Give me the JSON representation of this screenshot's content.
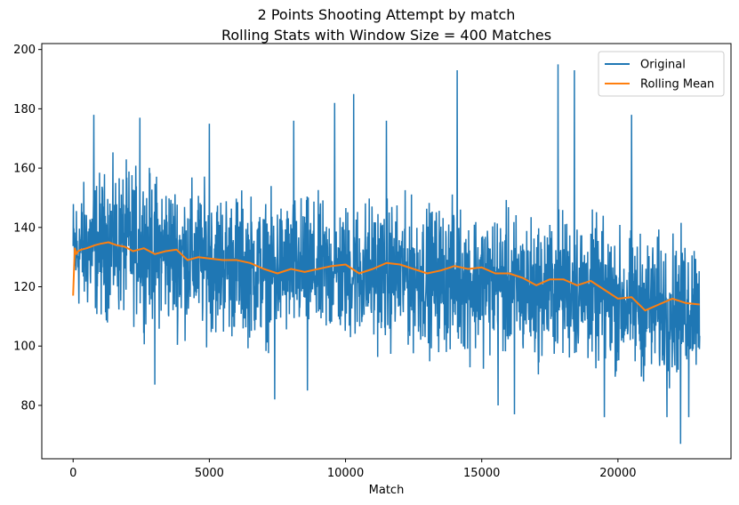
{
  "chart_data": {
    "type": "line",
    "title": "2 Points Shooting Attempt by match",
    "subtitle": "Rolling Stats with Window Size = 400 Matches",
    "xlabel": "Match",
    "ylabel": "",
    "xlim": [
      -1150,
      24150
    ],
    "ylim": [
      62,
      202
    ],
    "x_ticks": [
      0,
      5000,
      10000,
      15000,
      20000
    ],
    "y_ticks": [
      80,
      100,
      120,
      140,
      160,
      180,
      200
    ],
    "x_tick_labels": [
      "0",
      "5000",
      "10000",
      "15000",
      "20000"
    ],
    "y_tick_labels": [
      "80",
      "100",
      "120",
      "140",
      "160",
      "180",
      "200"
    ],
    "grid": false,
    "legend_position": "top-right",
    "series": [
      {
        "name": "Original",
        "color": "#1f77b4",
        "envelope_x": [
          0,
          1000,
          2000,
          3000,
          4000,
          5000,
          6000,
          7000,
          8000,
          9000,
          10000,
          11000,
          12000,
          13000,
          14000,
          15000,
          16000,
          17000,
          18000,
          19000,
          20000,
          21000,
          22000,
          23000
        ],
        "envelope_upper": [
          160,
          168,
          170,
          168,
          165,
          163,
          162,
          158,
          160,
          158,
          157,
          160,
          158,
          157,
          157,
          156,
          155,
          152,
          155,
          153,
          148,
          147,
          146,
          148
        ],
        "envelope_lower": [
          104,
          100,
          100,
          98,
          95,
          95,
          93,
          92,
          93,
          92,
          92,
          91,
          90,
          90,
          88,
          87,
          86,
          85,
          86,
          84,
          82,
          80,
          79,
          84
        ],
        "spikes": [
          {
            "x": 760,
            "y": 178
          },
          {
            "x": 2450,
            "y": 177
          },
          {
            "x": 3000,
            "y": 87
          },
          {
            "x": 5000,
            "y": 175
          },
          {
            "x": 7400,
            "y": 82
          },
          {
            "x": 8100,
            "y": 176
          },
          {
            "x": 8600,
            "y": 85
          },
          {
            "x": 9600,
            "y": 182
          },
          {
            "x": 10300,
            "y": 185
          },
          {
            "x": 11500,
            "y": 176
          },
          {
            "x": 14100,
            "y": 193
          },
          {
            "x": 15600,
            "y": 80
          },
          {
            "x": 16200,
            "y": 77
          },
          {
            "x": 17800,
            "y": 195
          },
          {
            "x": 18400,
            "y": 193
          },
          {
            "x": 19500,
            "y": 76
          },
          {
            "x": 20500,
            "y": 178
          },
          {
            "x": 21800,
            "y": 76
          },
          {
            "x": 22300,
            "y": 67
          },
          {
            "x": 22600,
            "y": 76
          }
        ]
      },
      {
        "name": "Rolling Mean",
        "color": "#ff7f0e",
        "x": [
          0,
          60,
          120,
          180,
          300,
          500,
          800,
          1000,
          1300,
          1600,
          1900,
          2200,
          2600,
          3000,
          3400,
          3800,
          4200,
          4600,
          5000,
          5500,
          6000,
          6500,
          7000,
          7500,
          8000,
          8500,
          9000,
          9500,
          10000,
          10500,
          11000,
          11500,
          12000,
          12500,
          13000,
          13500,
          14000,
          14500,
          15000,
          15500,
          16000,
          16500,
          17000,
          17500,
          18000,
          18500,
          19000,
          19500,
          20000,
          20500,
          21000,
          21500,
          22000,
          22500,
          23000
        ],
        "y": [
          117,
          133,
          131,
          132,
          132.5,
          133,
          134,
          134.5,
          135,
          134,
          133.5,
          132,
          133,
          131,
          132,
          132.5,
          129,
          130,
          129.5,
          129,
          129,
          128,
          126,
          124.5,
          126,
          125,
          126,
          127,
          127.5,
          124.5,
          126,
          128,
          127.5,
          126,
          124.5,
          125.5,
          127,
          126,
          126.5,
          124.5,
          124.5,
          123,
          120.5,
          122.5,
          122.5,
          120.5,
          122,
          119,
          116,
          116.5,
          112,
          114,
          116,
          114.5,
          114
        ]
      }
    ]
  }
}
